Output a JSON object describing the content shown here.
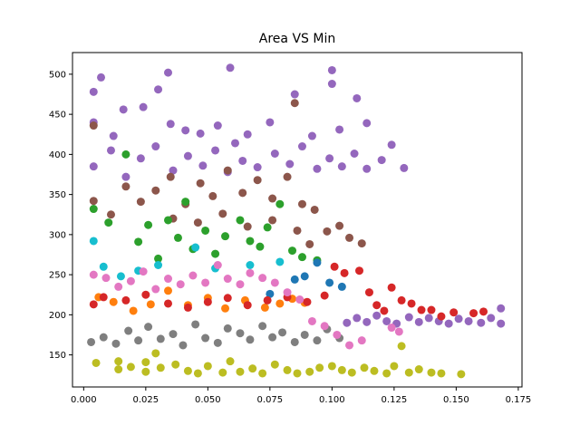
{
  "chart_data": {
    "type": "scatter",
    "title": "Area VS Min",
    "xlabel": "",
    "ylabel": "",
    "xlim": [
      -0.0045,
      0.1765
    ],
    "ylim": [
      110,
      527
    ],
    "x_ticks": [
      "0.000",
      "0.025",
      "0.050",
      "0.075",
      "0.100",
      "0.125",
      "0.150",
      "0.175"
    ],
    "y_ticks": [
      "150",
      "200",
      "250",
      "300",
      "350",
      "400",
      "450",
      "500"
    ],
    "grid": false,
    "legend": "none",
    "series": [
      {
        "color": "#bcbd22",
        "points": [
          [
            0.005,
            140
          ],
          [
            0.014,
            132
          ],
          [
            0.014,
            142
          ],
          [
            0.019,
            135
          ],
          [
            0.025,
            129
          ],
          [
            0.025,
            141
          ],
          [
            0.029,
            152
          ],
          [
            0.031,
            134
          ],
          [
            0.037,
            138
          ],
          [
            0.042,
            130
          ],
          [
            0.046,
            127
          ],
          [
            0.05,
            136
          ],
          [
            0.056,
            128
          ],
          [
            0.059,
            142
          ],
          [
            0.063,
            129
          ],
          [
            0.068,
            133
          ],
          [
            0.072,
            127
          ],
          [
            0.077,
            138
          ],
          [
            0.082,
            131
          ],
          [
            0.086,
            127
          ],
          [
            0.091,
            129
          ],
          [
            0.095,
            134
          ],
          [
            0.1,
            136
          ],
          [
            0.104,
            131
          ],
          [
            0.108,
            128
          ],
          [
            0.113,
            134
          ],
          [
            0.117,
            130
          ],
          [
            0.122,
            127
          ],
          [
            0.125,
            136
          ],
          [
            0.128,
            161
          ],
          [
            0.131,
            128
          ],
          [
            0.135,
            132
          ],
          [
            0.14,
            128
          ],
          [
            0.144,
            127
          ],
          [
            0.152,
            126
          ]
        ]
      },
      {
        "color": "#7f7f7f",
        "points": [
          [
            0.003,
            166
          ],
          [
            0.008,
            172
          ],
          [
            0.013,
            164
          ],
          [
            0.018,
            180
          ],
          [
            0.022,
            168
          ],
          [
            0.026,
            185
          ],
          [
            0.031,
            170
          ],
          [
            0.036,
            176
          ],
          [
            0.04,
            162
          ],
          [
            0.045,
            188
          ],
          [
            0.049,
            171
          ],
          [
            0.054,
            165
          ],
          [
            0.058,
            183
          ],
          [
            0.063,
            177
          ],
          [
            0.067,
            169
          ],
          [
            0.072,
            186
          ],
          [
            0.076,
            172
          ],
          [
            0.08,
            178
          ],
          [
            0.085,
            166
          ],
          [
            0.089,
            175
          ],
          [
            0.094,
            168
          ],
          [
            0.098,
            182
          ],
          [
            0.103,
            171
          ]
        ]
      },
      {
        "color": "#9467bd",
        "points": [
          [
            0.004,
            478
          ],
          [
            0.007,
            496
          ],
          [
            0.034,
            502
          ],
          [
            0.059,
            508
          ],
          [
            0.1,
            505
          ],
          [
            0.004,
            440
          ],
          [
            0.012,
            423
          ],
          [
            0.016,
            456
          ],
          [
            0.024,
            459
          ],
          [
            0.03,
            481
          ],
          [
            0.035,
            438
          ],
          [
            0.041,
            430
          ],
          [
            0.047,
            426
          ],
          [
            0.054,
            436
          ],
          [
            0.061,
            414
          ],
          [
            0.066,
            425
          ],
          [
            0.075,
            440
          ],
          [
            0.085,
            475
          ],
          [
            0.092,
            423
          ],
          [
            0.1,
            488
          ],
          [
            0.103,
            431
          ],
          [
            0.11,
            470
          ],
          [
            0.114,
            439
          ],
          [
            0.004,
            385
          ],
          [
            0.011,
            405
          ],
          [
            0.017,
            372
          ],
          [
            0.023,
            395
          ],
          [
            0.029,
            410
          ],
          [
            0.036,
            380
          ],
          [
            0.042,
            398
          ],
          [
            0.048,
            386
          ],
          [
            0.053,
            405
          ],
          [
            0.058,
            378
          ],
          [
            0.064,
            392
          ],
          [
            0.07,
            384
          ],
          [
            0.077,
            401
          ],
          [
            0.083,
            388
          ],
          [
            0.088,
            410
          ],
          [
            0.094,
            382
          ],
          [
            0.099,
            395
          ],
          [
            0.104,
            385
          ],
          [
            0.109,
            401
          ],
          [
            0.114,
            382
          ],
          [
            0.12,
            393
          ],
          [
            0.124,
            412
          ],
          [
            0.129,
            383
          ],
          [
            0.106,
            190
          ],
          [
            0.11,
            196
          ],
          [
            0.114,
            191
          ],
          [
            0.118,
            199
          ],
          [
            0.122,
            192
          ],
          [
            0.126,
            189
          ],
          [
            0.131,
            197
          ],
          [
            0.135,
            191
          ],
          [
            0.139,
            196
          ],
          [
            0.143,
            192
          ],
          [
            0.147,
            189
          ],
          [
            0.151,
            195
          ],
          [
            0.155,
            192
          ],
          [
            0.16,
            190
          ],
          [
            0.164,
            196
          ],
          [
            0.168,
            208
          ],
          [
            0.168,
            189
          ]
        ]
      },
      {
        "color": "#8c564b",
        "points": [
          [
            0.004,
            436
          ],
          [
            0.085,
            464
          ],
          [
            0.004,
            342
          ],
          [
            0.011,
            325
          ],
          [
            0.017,
            360
          ],
          [
            0.023,
            341
          ],
          [
            0.029,
            355
          ],
          [
            0.035,
            372
          ],
          [
            0.041,
            338
          ],
          [
            0.047,
            364
          ],
          [
            0.052,
            348
          ],
          [
            0.058,
            380
          ],
          [
            0.064,
            352
          ],
          [
            0.07,
            368
          ],
          [
            0.076,
            345
          ],
          [
            0.082,
            372
          ],
          [
            0.088,
            338
          ],
          [
            0.093,
            331
          ],
          [
            0.098,
            304
          ],
          [
            0.103,
            311
          ],
          [
            0.107,
            296
          ],
          [
            0.112,
            289
          ],
          [
            0.036,
            320
          ],
          [
            0.046,
            315
          ],
          [
            0.056,
            326
          ],
          [
            0.066,
            310
          ],
          [
            0.076,
            318
          ],
          [
            0.086,
            305
          ],
          [
            0.091,
            288
          ]
        ]
      },
      {
        "color": "#2ca02c",
        "points": [
          [
            0.004,
            332
          ],
          [
            0.01,
            315
          ],
          [
            0.017,
            400
          ],
          [
            0.022,
            291
          ],
          [
            0.026,
            312
          ],
          [
            0.03,
            270
          ],
          [
            0.034,
            318
          ],
          [
            0.038,
            296
          ],
          [
            0.041,
            341
          ],
          [
            0.044,
            282
          ],
          [
            0.049,
            305
          ],
          [
            0.053,
            276
          ],
          [
            0.057,
            298
          ],
          [
            0.063,
            318
          ],
          [
            0.067,
            292
          ],
          [
            0.071,
            285
          ],
          [
            0.074,
            309
          ],
          [
            0.079,
            338
          ],
          [
            0.084,
            280
          ],
          [
            0.088,
            272
          ],
          [
            0.094,
            268
          ]
        ]
      },
      {
        "color": "#17becf",
        "points": [
          [
            0.004,
            292
          ],
          [
            0.008,
            260
          ],
          [
            0.015,
            248
          ],
          [
            0.022,
            255
          ],
          [
            0.03,
            262
          ],
          [
            0.045,
            284
          ],
          [
            0.053,
            258
          ],
          [
            0.067,
            262
          ],
          [
            0.079,
            266
          ]
        ]
      },
      {
        "color": "#1f77b4",
        "points": [
          [
            0.075,
            226
          ],
          [
            0.085,
            244
          ],
          [
            0.089,
            248
          ],
          [
            0.094,
            265
          ],
          [
            0.099,
            240
          ],
          [
            0.104,
            235
          ]
        ]
      },
      {
        "color": "#ff7f0e",
        "points": [
          [
            0.006,
            222
          ],
          [
            0.012,
            216
          ],
          [
            0.02,
            205
          ],
          [
            0.027,
            213
          ],
          [
            0.034,
            230
          ],
          [
            0.042,
            212
          ],
          [
            0.05,
            221
          ],
          [
            0.057,
            208
          ],
          [
            0.065,
            218
          ],
          [
            0.073,
            209
          ],
          [
            0.079,
            214
          ],
          [
            0.084,
            220
          ],
          [
            0.089,
            215
          ]
        ]
      },
      {
        "color": "#d62728",
        "points": [
          [
            0.004,
            213
          ],
          [
            0.008,
            222
          ],
          [
            0.017,
            218
          ],
          [
            0.025,
            225
          ],
          [
            0.034,
            214
          ],
          [
            0.042,
            209
          ],
          [
            0.05,
            216
          ],
          [
            0.058,
            221
          ],
          [
            0.066,
            212
          ],
          [
            0.074,
            218
          ],
          [
            0.082,
            222
          ],
          [
            0.09,
            216
          ],
          [
            0.097,
            224
          ],
          [
            0.101,
            260
          ],
          [
            0.105,
            252
          ],
          [
            0.111,
            255
          ],
          [
            0.115,
            228
          ],
          [
            0.118,
            212
          ],
          [
            0.121,
            205
          ],
          [
            0.124,
            234
          ],
          [
            0.128,
            218
          ],
          [
            0.132,
            214
          ],
          [
            0.136,
            206
          ],
          [
            0.14,
            206
          ],
          [
            0.144,
            198
          ],
          [
            0.149,
            203
          ],
          [
            0.157,
            202
          ],
          [
            0.161,
            204
          ]
        ]
      },
      {
        "color": "#e377c2",
        "points": [
          [
            0.004,
            250
          ],
          [
            0.009,
            246
          ],
          [
            0.014,
            235
          ],
          [
            0.019,
            242
          ],
          [
            0.024,
            254
          ],
          [
            0.029,
            232
          ],
          [
            0.034,
            245
          ],
          [
            0.039,
            238
          ],
          [
            0.044,
            249
          ],
          [
            0.049,
            240
          ],
          [
            0.054,
            262
          ],
          [
            0.058,
            245
          ],
          [
            0.063,
            238
          ],
          [
            0.067,
            252
          ],
          [
            0.072,
            246
          ],
          [
            0.077,
            240
          ],
          [
            0.082,
            228
          ],
          [
            0.087,
            219
          ],
          [
            0.092,
            192
          ],
          [
            0.097,
            186
          ],
          [
            0.102,
            175
          ],
          [
            0.107,
            162
          ],
          [
            0.112,
            168
          ],
          [
            0.124,
            184
          ],
          [
            0.127,
            179
          ]
        ]
      }
    ]
  }
}
